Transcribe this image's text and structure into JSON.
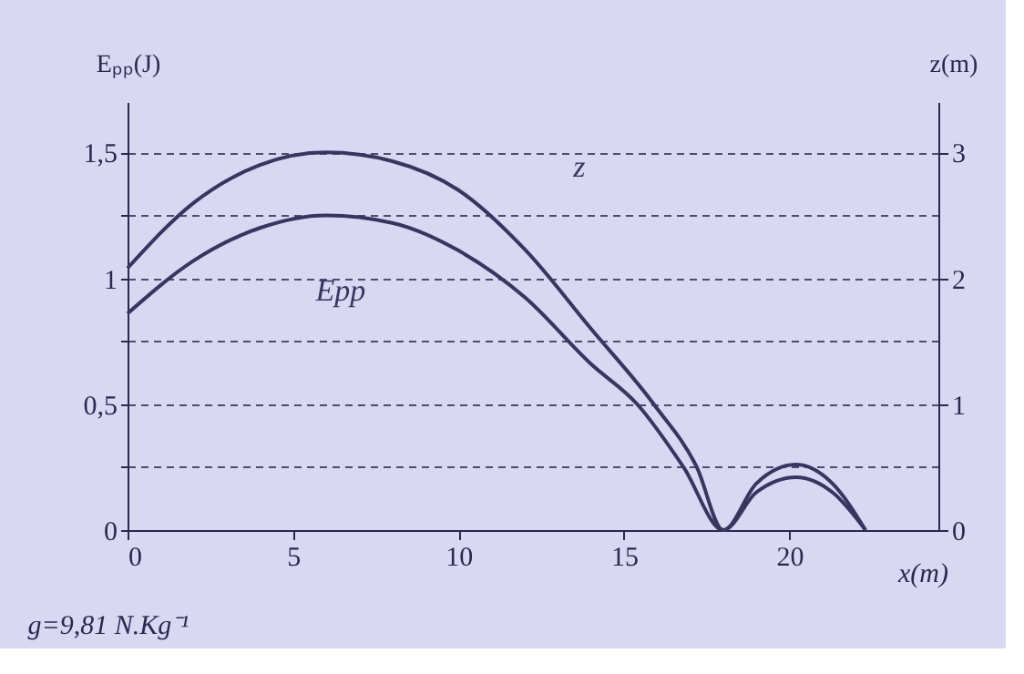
{
  "chart_data": {
    "type": "line",
    "xlabel": "x(m)",
    "ylabel": "Eₚₚ(J)",
    "y2label": "z(m)",
    "xlim": [
      0,
      24.5
    ],
    "xticks": [
      0,
      5,
      10,
      15,
      20
    ],
    "ylim": [
      0,
      1.7
    ],
    "yticks": [
      0,
      {
        "value": 0.25,
        "label": null
      },
      {
        "value": 0.5,
        "label": "0,5"
      },
      {
        "value": 0.75,
        "label": null
      },
      1,
      {
        "value": 1.25,
        "label": null
      },
      {
        "value": 1.5,
        "label": "1,5"
      }
    ],
    "y2lim": [
      0,
      3.4
    ],
    "y2ticks": [
      0,
      1,
      2,
      3
    ],
    "grid": "y",
    "line_style": "solid",
    "marker": "none",
    "series": [
      {
        "name": "z",
        "axis": "y2",
        "color": "#3a3560",
        "x": [
          0,
          2,
          4,
          6,
          8,
          10,
          12,
          14,
          15.9,
          17.2,
          18,
          19,
          20.2,
          21.3,
          22.3
        ],
        "values": [
          2.08,
          2.6,
          2.9,
          3.0,
          2.93,
          2.7,
          2.23,
          1.6,
          1.0,
          0.5,
          0,
          0.37,
          0.52,
          0.37,
          0
        ]
      },
      {
        "name": "Epp",
        "color": "#3a3560",
        "x": [
          0,
          2,
          4,
          6,
          8,
          10,
          12,
          14,
          15.4,
          16.8,
          18,
          19,
          20.2,
          21.3,
          22.3
        ],
        "values": [
          0.86,
          1.07,
          1.2,
          1.25,
          1.22,
          1.11,
          0.925,
          0.66,
          0.5,
          0.25,
          0,
          0.15,
          0.21,
          0.15,
          0
        ]
      }
    ],
    "annotations": [
      "g=9,81 N.Kg⁻¹"
    ]
  }
}
